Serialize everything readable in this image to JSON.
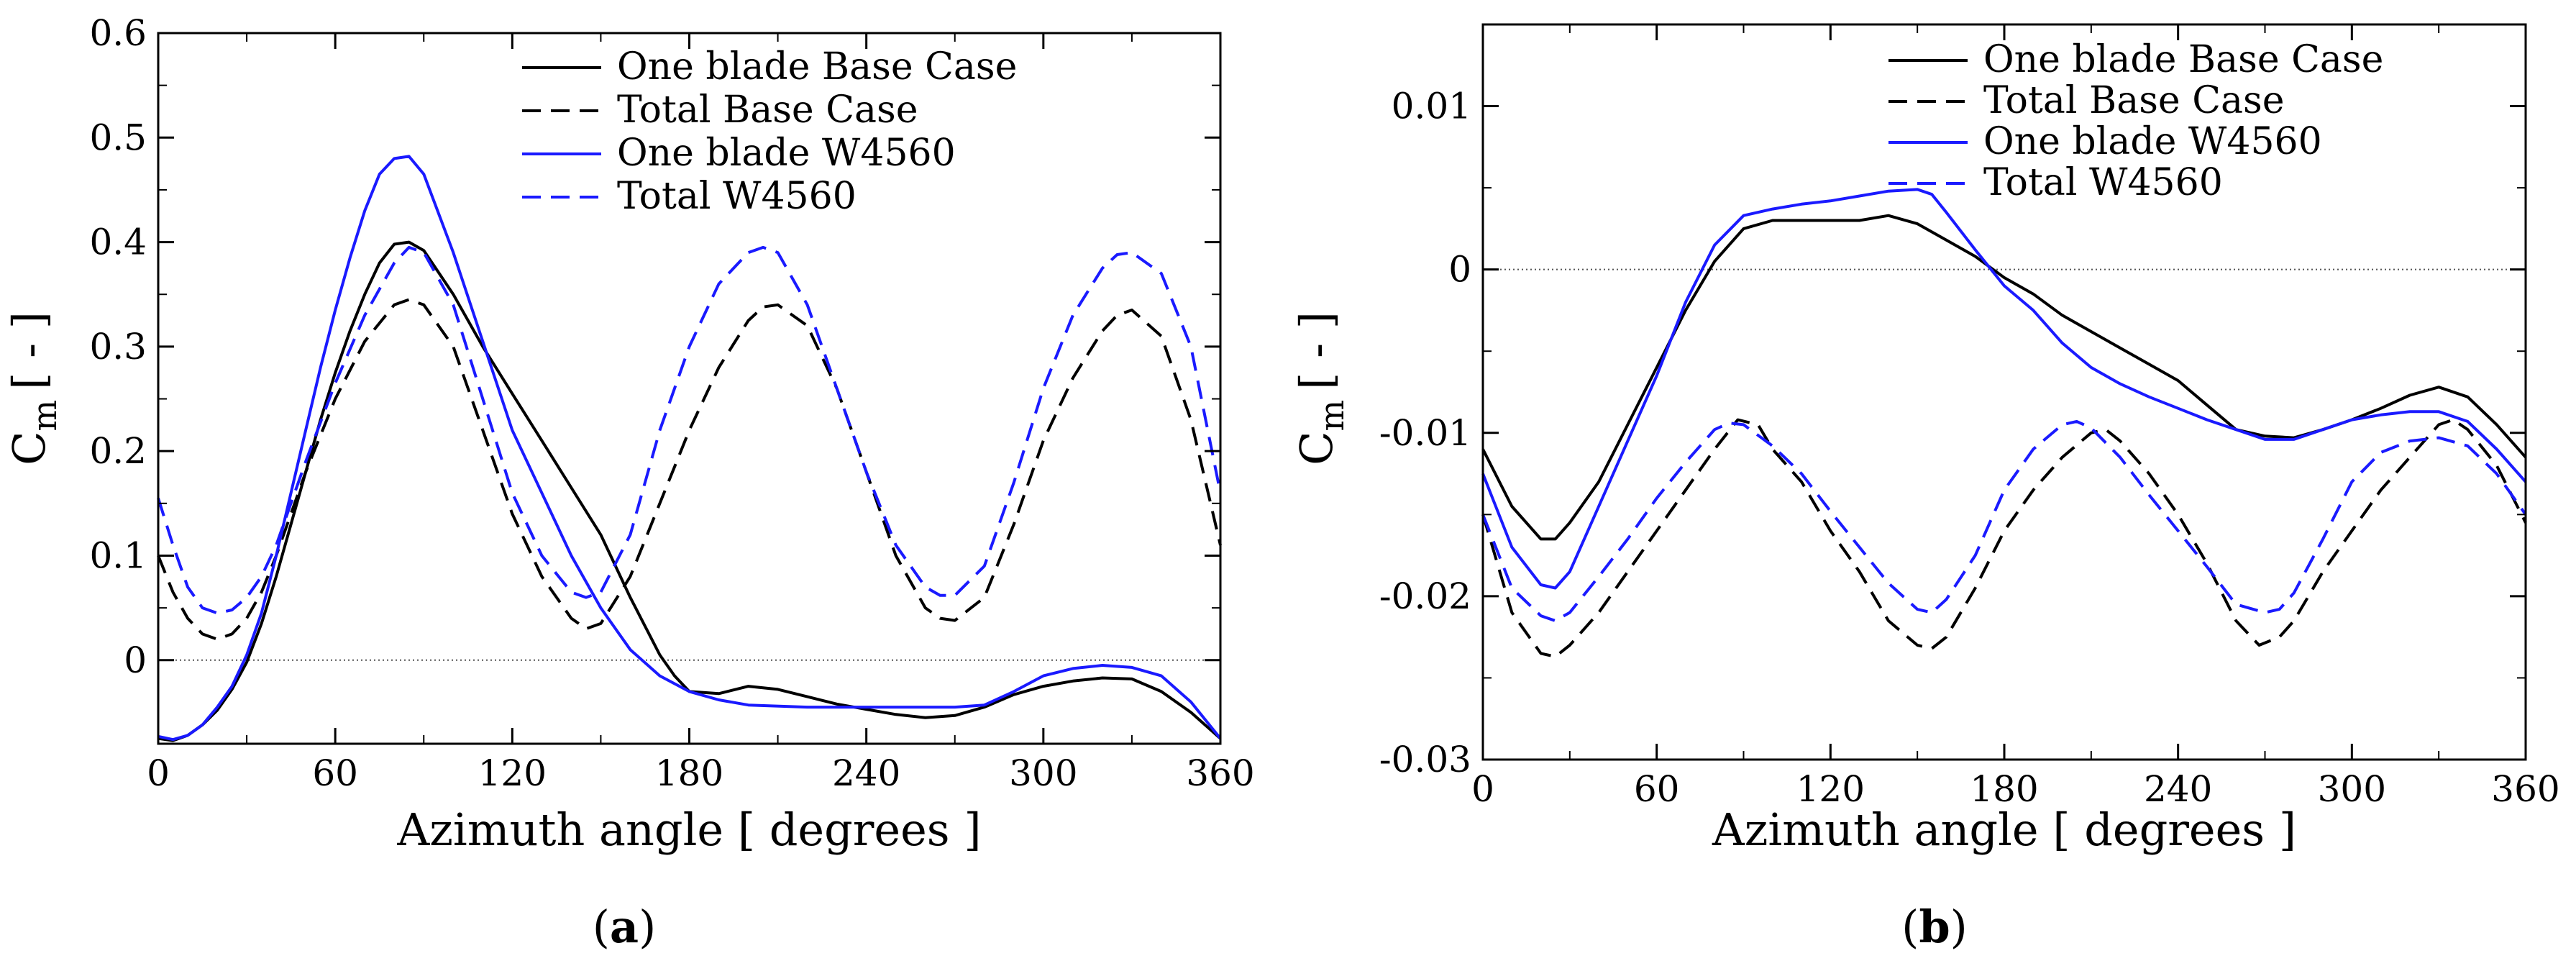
{
  "chart_data": [
    {
      "type": "line",
      "panel_label": "a",
      "xlabel": "Azimuth angle [ degrees ]",
      "ylabel": "C",
      "ylabel_sub": "m",
      "ylabel_unit": "[ - ]",
      "xlim": [
        0,
        360
      ],
      "ylim": [
        -0.08,
        0.6
      ],
      "xticks": [
        0,
        60,
        120,
        180,
        240,
        300,
        360
      ],
      "yticks": [
        0,
        0.1,
        0.2,
        0.3,
        0.4,
        0.5,
        0.6
      ],
      "xtick_labels": [
        "0",
        "60",
        "120",
        "180",
        "240",
        "300",
        "360"
      ],
      "ytick_labels": [
        "0",
        "0.1",
        "0.2",
        "0.3",
        "0.4",
        "0.5",
        "0.6"
      ],
      "zero_line": true,
      "legend_position": "top-right",
      "series": [
        {
          "name": "One blade Base Case",
          "color": "#000000",
          "dash": "solid",
          "x": [
            0,
            5,
            10,
            15,
            20,
            25,
            30,
            35,
            40,
            45,
            50,
            55,
            60,
            65,
            70,
            75,
            80,
            85,
            90,
            100,
            110,
            120,
            130,
            140,
            150,
            160,
            170,
            175,
            180,
            190,
            200,
            210,
            220,
            230,
            240,
            250,
            260,
            270,
            280,
            290,
            300,
            310,
            320,
            330,
            340,
            350,
            360
          ],
          "y": [
            -0.075,
            -0.077,
            -0.072,
            -0.062,
            -0.048,
            -0.028,
            -0.002,
            0.035,
            0.08,
            0.13,
            0.18,
            0.23,
            0.275,
            0.315,
            0.35,
            0.38,
            0.398,
            0.4,
            0.392,
            0.35,
            0.3,
            0.255,
            0.21,
            0.165,
            0.12,
            0.06,
            0.005,
            -0.015,
            -0.03,
            -0.032,
            -0.025,
            -0.028,
            -0.035,
            -0.042,
            -0.047,
            -0.052,
            -0.055,
            -0.053,
            -0.045,
            -0.033,
            -0.025,
            -0.02,
            -0.017,
            -0.018,
            -0.03,
            -0.05,
            -0.075
          ]
        },
        {
          "name": "Total Base Case",
          "color": "#000000",
          "dash": "dashed",
          "x": [
            0,
            5,
            10,
            15,
            20,
            25,
            30,
            35,
            40,
            45,
            50,
            60,
            70,
            80,
            85,
            90,
            100,
            110,
            120,
            130,
            140,
            145,
            150,
            160,
            170,
            180,
            190,
            200,
            205,
            210,
            220,
            230,
            240,
            250,
            260,
            265,
            270,
            280,
            290,
            300,
            310,
            320,
            325,
            330,
            340,
            350,
            360
          ],
          "y": [
            0.1,
            0.065,
            0.04,
            0.025,
            0.02,
            0.025,
            0.04,
            0.065,
            0.1,
            0.14,
            0.18,
            0.25,
            0.305,
            0.34,
            0.345,
            0.34,
            0.3,
            0.22,
            0.14,
            0.08,
            0.04,
            0.03,
            0.035,
            0.08,
            0.15,
            0.22,
            0.28,
            0.325,
            0.338,
            0.34,
            0.32,
            0.26,
            0.18,
            0.1,
            0.05,
            0.04,
            0.038,
            0.06,
            0.13,
            0.21,
            0.27,
            0.315,
            0.33,
            0.335,
            0.31,
            0.23,
            0.11
          ]
        },
        {
          "name": "One blade W4560",
          "color": "#1a1aff",
          "dash": "solid",
          "x": [
            0,
            5,
            10,
            15,
            20,
            25,
            30,
            35,
            40,
            45,
            50,
            55,
            60,
            65,
            70,
            75,
            80,
            85,
            90,
            100,
            110,
            120,
            130,
            140,
            150,
            160,
            170,
            180,
            190,
            200,
            220,
            240,
            250,
            260,
            270,
            280,
            290,
            300,
            310,
            320,
            330,
            340,
            350,
            360
          ],
          "y": [
            -0.073,
            -0.076,
            -0.072,
            -0.062,
            -0.045,
            -0.025,
            0.005,
            0.045,
            0.1,
            0.16,
            0.22,
            0.28,
            0.335,
            0.385,
            0.43,
            0.465,
            0.48,
            0.482,
            0.465,
            0.39,
            0.305,
            0.22,
            0.16,
            0.1,
            0.05,
            0.01,
            -0.015,
            -0.03,
            -0.038,
            -0.043,
            -0.045,
            -0.045,
            -0.045,
            -0.045,
            -0.045,
            -0.043,
            -0.03,
            -0.015,
            -0.008,
            -0.005,
            -0.007,
            -0.015,
            -0.04,
            -0.075
          ]
        },
        {
          "name": "Total W4560",
          "color": "#1a1aff",
          "dash": "dashed",
          "x": [
            0,
            5,
            10,
            15,
            20,
            25,
            30,
            35,
            40,
            45,
            50,
            60,
            70,
            80,
            85,
            90,
            100,
            110,
            120,
            130,
            140,
            145,
            150,
            160,
            170,
            180,
            190,
            200,
            205,
            210,
            220,
            230,
            240,
            250,
            260,
            265,
            270,
            280,
            290,
            300,
            310,
            320,
            325,
            330,
            340,
            350,
            360
          ],
          "y": [
            0.155,
            0.11,
            0.07,
            0.05,
            0.045,
            0.048,
            0.06,
            0.08,
            0.11,
            0.15,
            0.19,
            0.265,
            0.33,
            0.38,
            0.395,
            0.39,
            0.34,
            0.25,
            0.16,
            0.1,
            0.065,
            0.06,
            0.065,
            0.12,
            0.22,
            0.3,
            0.36,
            0.39,
            0.395,
            0.39,
            0.34,
            0.26,
            0.18,
            0.11,
            0.07,
            0.062,
            0.062,
            0.09,
            0.17,
            0.26,
            0.33,
            0.375,
            0.388,
            0.39,
            0.37,
            0.3,
            0.16
          ]
        }
      ]
    },
    {
      "type": "line",
      "panel_label": "b",
      "xlabel": "Azimuth angle [ degrees ]",
      "ylabel": "C",
      "ylabel_sub": "m",
      "ylabel_unit": "[ - ]",
      "xlim": [
        0,
        360
      ],
      "ylim": [
        -0.03,
        0.015
      ],
      "xticks": [
        0,
        60,
        120,
        180,
        240,
        300,
        360
      ],
      "yticks": [
        -0.03,
        -0.02,
        -0.01,
        0,
        0.01
      ],
      "xtick_labels": [
        "0",
        "60",
        "120",
        "180",
        "240",
        "300",
        "360"
      ],
      "ytick_labels": [
        "-0.03",
        "-0.02",
        "-0.01",
        "0",
        "0.01"
      ],
      "zero_line": true,
      "legend_position": "top-right",
      "series": [
        {
          "name": "One blade Base Case",
          "color": "#000000",
          "dash": "solid",
          "x": [
            0,
            10,
            20,
            25,
            30,
            40,
            50,
            60,
            70,
            80,
            90,
            100,
            110,
            120,
            130,
            140,
            150,
            160,
            170,
            180,
            190,
            200,
            210,
            220,
            230,
            240,
            250,
            260,
            270,
            280,
            290,
            300,
            310,
            320,
            330,
            340,
            350,
            360
          ],
          "y": [
            -0.011,
            -0.0145,
            -0.0165,
            -0.0165,
            -0.0155,
            -0.013,
            -0.0095,
            -0.006,
            -0.0025,
            0.0005,
            0.0025,
            0.003,
            0.003,
            0.003,
            0.003,
            0.0033,
            0.0028,
            0.0018,
            0.0008,
            -0.0005,
            -0.0015,
            -0.0028,
            -0.0038,
            -0.0048,
            -0.0058,
            -0.0068,
            -0.0083,
            -0.0098,
            -0.0102,
            -0.0103,
            -0.0098,
            -0.0092,
            -0.0085,
            -0.0077,
            -0.0072,
            -0.0078,
            -0.0095,
            -0.0115
          ]
        },
        {
          "name": "Total Base Case",
          "color": "#000000",
          "dash": "dashed",
          "x": [
            0,
            10,
            20,
            25,
            30,
            40,
            50,
            60,
            70,
            80,
            88,
            95,
            100,
            110,
            120,
            130,
            140,
            150,
            155,
            160,
            170,
            180,
            190,
            200,
            210,
            215,
            220,
            230,
            240,
            250,
            260,
            268,
            275,
            280,
            290,
            300,
            310,
            320,
            330,
            335,
            340,
            350,
            360
          ],
          "y": [
            -0.015,
            -0.021,
            -0.0235,
            -0.0237,
            -0.023,
            -0.021,
            -0.0185,
            -0.016,
            -0.0135,
            -0.011,
            -0.0092,
            -0.0095,
            -0.011,
            -0.013,
            -0.016,
            -0.0185,
            -0.0215,
            -0.023,
            -0.0232,
            -0.0225,
            -0.0195,
            -0.016,
            -0.0135,
            -0.0115,
            -0.01,
            -0.0098,
            -0.0105,
            -0.0125,
            -0.015,
            -0.018,
            -0.0215,
            -0.023,
            -0.0225,
            -0.0215,
            -0.0185,
            -0.016,
            -0.0135,
            -0.0115,
            -0.0095,
            -0.0092,
            -0.0098,
            -0.012,
            -0.0155
          ]
        },
        {
          "name": "One blade W4560",
          "color": "#1a1aff",
          "dash": "solid",
          "x": [
            0,
            10,
            20,
            25,
            30,
            40,
            50,
            60,
            70,
            80,
            90,
            100,
            110,
            120,
            130,
            140,
            150,
            155,
            160,
            170,
            180,
            190,
            200,
            210,
            220,
            230,
            240,
            250,
            260,
            270,
            280,
            290,
            300,
            310,
            320,
            330,
            340,
            350,
            360
          ],
          "y": [
            -0.0125,
            -0.017,
            -0.0193,
            -0.0195,
            -0.0185,
            -0.0145,
            -0.0105,
            -0.0065,
            -0.002,
            0.0015,
            0.0033,
            0.0037,
            0.004,
            0.0042,
            0.0045,
            0.0048,
            0.0049,
            0.0046,
            0.0035,
            0.0012,
            -0.001,
            -0.0025,
            -0.0045,
            -0.006,
            -0.007,
            -0.0078,
            -0.0085,
            -0.0092,
            -0.0098,
            -0.0104,
            -0.0104,
            -0.0098,
            -0.0092,
            -0.0089,
            -0.0087,
            -0.0087,
            -0.0093,
            -0.011,
            -0.013
          ]
        },
        {
          "name": "Total W4560",
          "color": "#1a1aff",
          "dash": "dashed",
          "x": [
            0,
            10,
            20,
            25,
            30,
            40,
            50,
            60,
            70,
            80,
            85,
            90,
            100,
            110,
            120,
            130,
            140,
            150,
            155,
            160,
            170,
            180,
            190,
            200,
            205,
            210,
            220,
            230,
            240,
            250,
            260,
            270,
            275,
            280,
            290,
            300,
            310,
            320,
            330,
            340,
            350,
            360
          ],
          "y": [
            -0.015,
            -0.0195,
            -0.0212,
            -0.0215,
            -0.021,
            -0.0188,
            -0.0165,
            -0.014,
            -0.0118,
            -0.0098,
            -0.0094,
            -0.0095,
            -0.0108,
            -0.0125,
            -0.0148,
            -0.017,
            -0.0192,
            -0.0208,
            -0.021,
            -0.0202,
            -0.0175,
            -0.0135,
            -0.011,
            -0.0095,
            -0.0093,
            -0.0097,
            -0.0115,
            -0.0138,
            -0.016,
            -0.0182,
            -0.0205,
            -0.021,
            -0.0208,
            -0.0198,
            -0.0165,
            -0.013,
            -0.0112,
            -0.0105,
            -0.0103,
            -0.0108,
            -0.0125,
            -0.015
          ]
        }
      ]
    }
  ]
}
